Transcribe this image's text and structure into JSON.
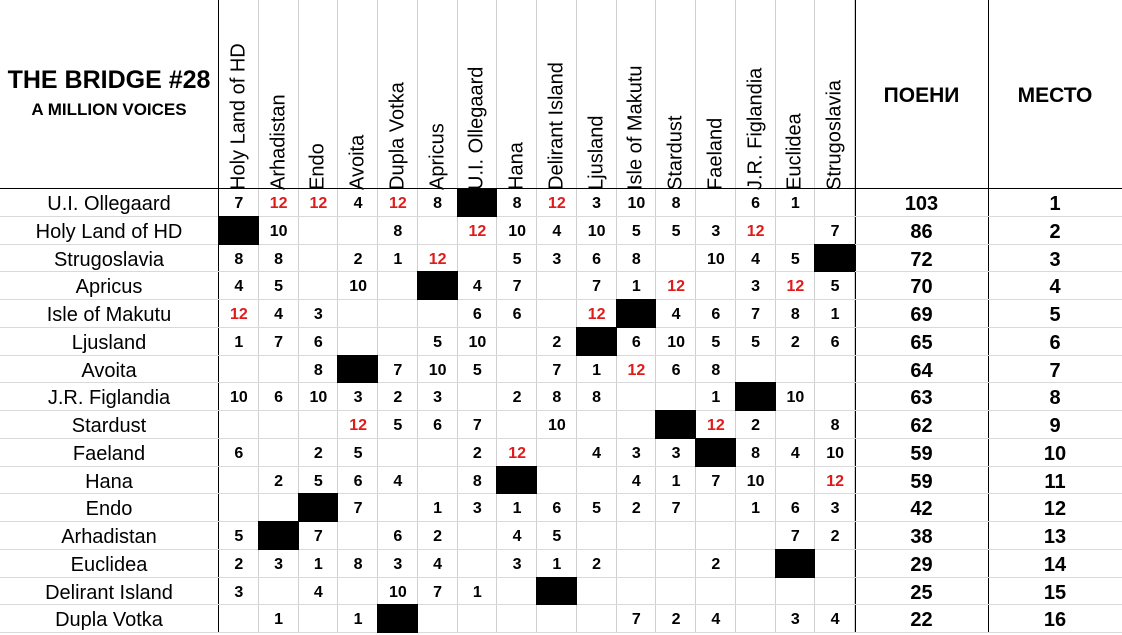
{
  "title": {
    "line1": "THE BRIDGE #28",
    "line2": "A MILLION VOICES"
  },
  "headers": {
    "points": "ПОЕНИ",
    "place": "МЕСТО"
  },
  "voters": [
    "Holy Land of HD",
    "Arhadistan",
    "Endo",
    "Avoita",
    "Dupla Votka",
    "Apricus",
    "U.I. Ollegaard",
    "Hana",
    "Delirant Island",
    "Ljusland",
    "Isle of Makutu",
    "Stardust",
    "Faeland",
    "J.R. Figlandia",
    "Euclidea",
    "Strugoslavia"
  ],
  "colors": {
    "twelve": "#e01b1b",
    "self_vote_block": "#000000"
  },
  "rows": [
    {
      "name": "U.I. Ollegaard",
      "points": "103",
      "place": "1",
      "votes": [
        "7",
        "12",
        "12",
        "4",
        "12",
        "8",
        "",
        "8",
        "12",
        "3",
        "10",
        "8",
        "",
        "6",
        "1",
        ""
      ],
      "self": 6
    },
    {
      "name": "Holy Land of HD",
      "points": "86",
      "place": "2",
      "votes": [
        "",
        "10",
        "",
        "",
        "8",
        "",
        "12",
        "10",
        "4",
        "10",
        "5",
        "5",
        "3",
        "12",
        "",
        "7"
      ],
      "self": 0
    },
    {
      "name": "Strugoslavia",
      "points": "72",
      "place": "3",
      "votes": [
        "8",
        "8",
        "",
        "2",
        "1",
        "12",
        "",
        "5",
        "3",
        "6",
        "8",
        "",
        "10",
        "4",
        "5",
        ""
      ],
      "self": 15
    },
    {
      "name": "Apricus",
      "points": "70",
      "place": "4",
      "votes": [
        "4",
        "5",
        "",
        "10",
        "",
        "",
        "4",
        "7",
        "",
        "7",
        "1",
        "12",
        "",
        "3",
        "12",
        "5"
      ],
      "self": 5
    },
    {
      "name": "Isle of Makutu",
      "points": "69",
      "place": "5",
      "votes": [
        "12",
        "4",
        "3",
        "",
        "",
        "",
        "6",
        "6",
        "",
        "12",
        "",
        "4",
        "6",
        "7",
        "8",
        "1"
      ],
      "self": 10
    },
    {
      "name": "Ljusland",
      "points": "65",
      "place": "6",
      "votes": [
        "1",
        "7",
        "6",
        "",
        "",
        "5",
        "10",
        "",
        "2",
        "",
        "6",
        "10",
        "5",
        "5",
        "2",
        "6"
      ],
      "self": 9
    },
    {
      "name": "Avoita",
      "points": "64",
      "place": "7",
      "votes": [
        "",
        "",
        "8",
        "",
        "7",
        "10",
        "5",
        "",
        "7",
        "1",
        "12",
        "6",
        "8",
        "",
        "",
        ""
      ],
      "self": 3
    },
    {
      "name": "J.R. Figlandia",
      "points": "63",
      "place": "8",
      "votes": [
        "10",
        "6",
        "10",
        "3",
        "2",
        "3",
        "",
        "2",
        "8",
        "8",
        "",
        "",
        "1",
        "",
        "10",
        ""
      ],
      "self": 13
    },
    {
      "name": "Stardust",
      "points": "62",
      "place": "9",
      "votes": [
        "",
        "",
        "",
        "12",
        "5",
        "6",
        "7",
        "",
        "10",
        "",
        "",
        "",
        "12",
        "2",
        "",
        "8"
      ],
      "self": 11
    },
    {
      "name": "Faeland",
      "points": "59",
      "place": "10",
      "votes": [
        "6",
        "",
        "2",
        "5",
        "",
        "",
        "2",
        "12",
        "",
        "4",
        "3",
        "3",
        "",
        "8",
        "4",
        "10"
      ],
      "self": 12
    },
    {
      "name": "Hana",
      "points": "59",
      "place": "11",
      "votes": [
        "",
        "2",
        "5",
        "6",
        "4",
        "",
        "8",
        "",
        "",
        "",
        "4",
        "1",
        "7",
        "10",
        "",
        "12"
      ],
      "self": 7
    },
    {
      "name": "Endo",
      "points": "42",
      "place": "12",
      "votes": [
        "",
        "",
        "",
        "7",
        "",
        "1",
        "3",
        "1",
        "6",
        "5",
        "2",
        "7",
        "",
        "1",
        "6",
        "3"
      ],
      "self": 2
    },
    {
      "name": "Arhadistan",
      "points": "38",
      "place": "13",
      "votes": [
        "5",
        "",
        "7",
        "",
        "6",
        "2",
        "",
        "4",
        "5",
        "",
        "",
        "",
        "",
        "",
        "7",
        "2"
      ],
      "self": 1
    },
    {
      "name": "Euclidea",
      "points": "29",
      "place": "14",
      "votes": [
        "2",
        "3",
        "1",
        "8",
        "3",
        "4",
        "",
        "3",
        "1",
        "2",
        "",
        "",
        "2",
        "",
        "",
        ""
      ],
      "self": 14
    },
    {
      "name": "Delirant Island",
      "points": "25",
      "place": "15",
      "votes": [
        "3",
        "",
        "4",
        "",
        "10",
        "7",
        "1",
        "",
        "",
        "",
        "",
        "",
        "",
        "",
        "",
        ""
      ],
      "self": 8
    },
    {
      "name": "Dupla Votka",
      "points": "22",
      "place": "16",
      "votes": [
        "",
        "1",
        "",
        "1",
        "",
        "",
        "",
        "",
        "",
        "",
        "7",
        "2",
        "4",
        "",
        "3",
        "4"
      ],
      "self": 4
    }
  ]
}
